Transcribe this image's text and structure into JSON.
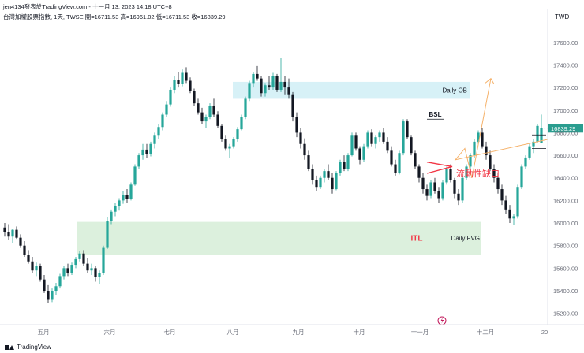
{
  "header": {
    "author_line": "jen4134發表於TradingView.com - 十一月 13, 2023 14:18 UTC+8",
    "symbol_line": "台灣加權股票指數, 1天, TWSE  開=16711.53  高=16961.02  低=16711.53  收=16839.29"
  },
  "footer": {
    "brand": "TradingView"
  },
  "colors": {
    "up": "#26a69a",
    "down": "#131722",
    "ob_zone": "#d7f1f7",
    "fvg_zone": "#dcf0dd",
    "annotation_red": "#f23645",
    "arrow_orange": "#f5b26b",
    "price_tag": "#2a9d8f"
  },
  "chart_data": {
    "type": "candlestick",
    "currency_label": "TWD",
    "y_ticks": [
      15200,
      15400,
      15600,
      15800,
      16000,
      16200,
      16400,
      16600,
      16800,
      17000,
      17200,
      17400,
      17600
    ],
    "y_tick_labels": [
      "15200.00",
      "15400.00",
      "15600.00",
      "15800.00",
      "16000.00",
      "16200.00",
      "16400.00",
      "16600.00",
      "16800.00",
      "17000.00",
      "17200.00",
      "17400.00",
      "17600.00"
    ],
    "ylim": [
      15100,
      17780
    ],
    "x_labels": [
      "五月",
      "六月",
      "七月",
      "八月",
      "九月",
      "十月",
      "十一月",
      "十二月",
      "20"
    ],
    "last_price": 16839.29,
    "last_price_label": "16839.29",
    "zones": [
      {
        "label": "Daily OB",
        "y_low": 17100,
        "y_high": 17250
      },
      {
        "label": "Daily FVG",
        "y_low": 15720,
        "y_high": 16010
      }
    ],
    "bsl": {
      "label": "BSL",
      "level": 16920
    },
    "annotations": {
      "itl": "ITL",
      "liquidity_gap": "流動性缺口"
    },
    "candles": [
      [
        15960,
        16000,
        15880,
        15920
      ],
      [
        15920,
        15990,
        15850,
        15880
      ],
      [
        15880,
        15950,
        15820,
        15940
      ],
      [
        15940,
        15970,
        15860,
        15870
      ],
      [
        15870,
        15900,
        15780,
        15800
      ],
      [
        15800,
        15840,
        15700,
        15720
      ],
      [
        15720,
        15760,
        15640,
        15660
      ],
      [
        15660,
        15700,
        15560,
        15580
      ],
      [
        15580,
        15650,
        15530,
        15620
      ],
      [
        15620,
        15640,
        15480,
        15500
      ],
      [
        15500,
        15540,
        15380,
        15400
      ],
      [
        15400,
        15450,
        15290,
        15320
      ],
      [
        15320,
        15420,
        15300,
        15400
      ],
      [
        15400,
        15470,
        15360,
        15440
      ],
      [
        15440,
        15550,
        15420,
        15530
      ],
      [
        15530,
        15620,
        15500,
        15600
      ],
      [
        15600,
        15640,
        15530,
        15560
      ],
      [
        15560,
        15650,
        15540,
        15630
      ],
      [
        15630,
        15700,
        15600,
        15680
      ],
      [
        15680,
        15750,
        15660,
        15730
      ],
      [
        15730,
        15760,
        15620,
        15640
      ],
      [
        15640,
        15690,
        15560,
        15580
      ],
      [
        15580,
        15640,
        15540,
        15600
      ],
      [
        15600,
        15620,
        15480,
        15520
      ],
      [
        15520,
        15580,
        15460,
        15560
      ],
      [
        15560,
        15800,
        15540,
        15780
      ],
      [
        15780,
        16050,
        15770,
        16020
      ],
      [
        16020,
        16120,
        15990,
        16100
      ],
      [
        16100,
        16180,
        16060,
        16150
      ],
      [
        16150,
        16220,
        16110,
        16200
      ],
      [
        16200,
        16280,
        16170,
        16250
      ],
      [
        16250,
        16300,
        16180,
        16210
      ],
      [
        16210,
        16360,
        16200,
        16340
      ],
      [
        16340,
        16520,
        16330,
        16500
      ],
      [
        16500,
        16620,
        16480,
        16600
      ],
      [
        16600,
        16700,
        16560,
        16650
      ],
      [
        16650,
        16700,
        16580,
        16610
      ],
      [
        16610,
        16720,
        16590,
        16700
      ],
      [
        16700,
        16800,
        16660,
        16780
      ],
      [
        16780,
        16880,
        16740,
        16850
      ],
      [
        16850,
        16980,
        16820,
        16960
      ],
      [
        16960,
        17080,
        16940,
        17050
      ],
      [
        17050,
        17200,
        17030,
        17180
      ],
      [
        17180,
        17300,
        17150,
        17270
      ],
      [
        17270,
        17340,
        17200,
        17230
      ],
      [
        17230,
        17360,
        17210,
        17330
      ],
      [
        17330,
        17380,
        17240,
        17260
      ],
      [
        17260,
        17290,
        17150,
        17170
      ],
      [
        17170,
        17190,
        17040,
        17060
      ],
      [
        17060,
        17100,
        16960,
        16980
      ],
      [
        16980,
        17020,
        16880,
        16900
      ],
      [
        16900,
        16960,
        16840,
        16940
      ],
      [
        16940,
        17060,
        16920,
        17040
      ],
      [
        17040,
        17100,
        16940,
        16960
      ],
      [
        16960,
        16990,
        16840,
        16860
      ],
      [
        16860,
        16880,
        16720,
        16740
      ],
      [
        16740,
        16780,
        16640,
        16660
      ],
      [
        16660,
        16700,
        16580,
        16680
      ],
      [
        16680,
        16760,
        16660,
        16740
      ],
      [
        16740,
        16850,
        16720,
        16830
      ],
      [
        16830,
        16960,
        16820,
        16940
      ],
      [
        16940,
        17120,
        16920,
        17100
      ],
      [
        17100,
        17260,
        17080,
        17240
      ],
      [
        17240,
        17340,
        17200,
        17320
      ],
      [
        17320,
        17390,
        17260,
        17280
      ],
      [
        17280,
        17300,
        17120,
        17150
      ],
      [
        17150,
        17240,
        17120,
        17220
      ],
      [
        17220,
        17300,
        17180,
        17200
      ],
      [
        17200,
        17330,
        17180,
        17300
      ],
      [
        17300,
        17320,
        17160,
        17180
      ],
      [
        17180,
        17460,
        17160,
        17250
      ],
      [
        17250,
        17300,
        17140,
        17200
      ],
      [
        17200,
        17280,
        17100,
        17140
      ],
      [
        17140,
        17160,
        16900,
        16940
      ],
      [
        16940,
        16980,
        16760,
        16800
      ],
      [
        16800,
        16840,
        16660,
        16700
      ],
      [
        16700,
        16750,
        16560,
        16600
      ],
      [
        16600,
        16640,
        16460,
        16480
      ],
      [
        16480,
        16520,
        16340,
        16380
      ],
      [
        16380,
        16420,
        16280,
        16320
      ],
      [
        16320,
        16420,
        16300,
        16400
      ],
      [
        16400,
        16480,
        16360,
        16460
      ],
      [
        16460,
        16520,
        16380,
        16400
      ],
      [
        16400,
        16440,
        16260,
        16300
      ],
      [
        16300,
        16460,
        16290,
        16440
      ],
      [
        16440,
        16560,
        16420,
        16540
      ],
      [
        16540,
        16600,
        16460,
        16480
      ],
      [
        16480,
        16620,
        16460,
        16600
      ],
      [
        16600,
        16800,
        16590,
        16780
      ],
      [
        16780,
        16800,
        16640,
        16660
      ],
      [
        16660,
        16680,
        16520,
        16560
      ],
      [
        16560,
        16700,
        16540,
        16680
      ],
      [
        16680,
        16820,
        16660,
        16800
      ],
      [
        16800,
        16830,
        16680,
        16700
      ],
      [
        16700,
        16780,
        16660,
        16760
      ],
      [
        16760,
        16820,
        16720,
        16800
      ],
      [
        16800,
        16840,
        16700,
        16720
      ],
      [
        16720,
        16760,
        16620,
        16640
      ],
      [
        16640,
        16680,
        16500,
        16520
      ],
      [
        16520,
        16560,
        16420,
        16440
      ],
      [
        16440,
        16640,
        16430,
        16620
      ],
      [
        16620,
        16920,
        16600,
        16900
      ],
      [
        16900,
        16920,
        16740,
        16760
      ],
      [
        16760,
        16780,
        16600,
        16620
      ],
      [
        16620,
        16640,
        16480,
        16500
      ],
      [
        16500,
        16520,
        16360,
        16400
      ],
      [
        16400,
        16440,
        16260,
        16300
      ],
      [
        16300,
        16340,
        16200,
        16240
      ],
      [
        16240,
        16380,
        16220,
        16360
      ],
      [
        16360,
        16400,
        16260,
        16280
      ],
      [
        16280,
        16320,
        16180,
        16220
      ],
      [
        16220,
        16380,
        16200,
        16360
      ],
      [
        16360,
        16500,
        16340,
        16480
      ],
      [
        16480,
        16520,
        16360,
        16380
      ],
      [
        16380,
        16400,
        16220,
        16260
      ],
      [
        16260,
        16300,
        16160,
        16200
      ],
      [
        16200,
        16420,
        16180,
        16400
      ],
      [
        16400,
        16520,
        16380,
        16500
      ],
      [
        16500,
        16620,
        16480,
        16600
      ],
      [
        16600,
        16740,
        16580,
        16720
      ],
      [
        16720,
        16820,
        16700,
        16800
      ],
      [
        16800,
        16840,
        16660,
        16680
      ],
      [
        16680,
        16720,
        16560,
        16600
      ],
      [
        16600,
        16640,
        16460,
        16480
      ],
      [
        16480,
        16520,
        16360,
        16400
      ],
      [
        16400,
        16440,
        16260,
        16300
      ],
      [
        16300,
        16340,
        16160,
        16200
      ],
      [
        16200,
        16240,
        16080,
        16120
      ],
      [
        16120,
        16160,
        16000,
        16040
      ],
      [
        16040,
        16080,
        15980,
        16060
      ],
      [
        16060,
        16340,
        16040,
        16320
      ],
      [
        16320,
        16520,
        16300,
        16500
      ],
      [
        16500,
        16600,
        16480,
        16580
      ],
      [
        16580,
        16700,
        16560,
        16680
      ],
      [
        16680,
        16740,
        16620,
        16720
      ],
      [
        16720,
        16880,
        16711,
        16860
      ],
      [
        16711.53,
        16961.02,
        16711.53,
        16839.29
      ]
    ]
  }
}
